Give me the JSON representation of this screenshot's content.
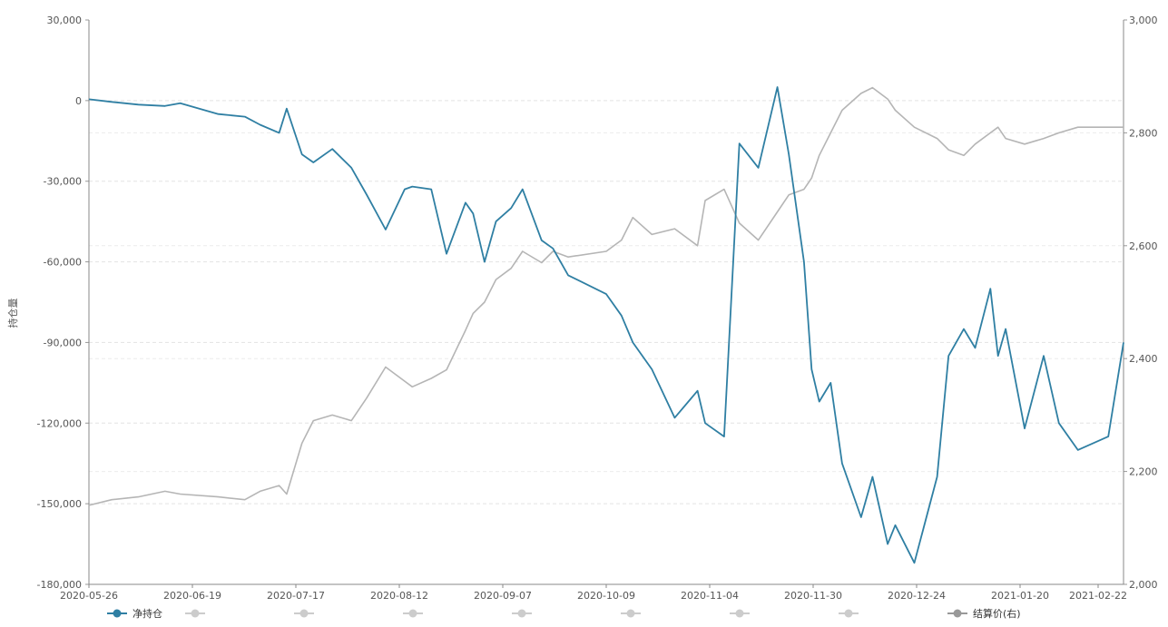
{
  "chart_data": {
    "type": "line",
    "ylabel": "持仓量",
    "y_left": {
      "min": -180000,
      "max": 30000,
      "ticks": [
        "30,000",
        "0",
        "-30,000",
        "-60,000",
        "-90,000",
        "-120,000",
        "-150,000",
        "-180,000"
      ]
    },
    "y_right": {
      "min": 2000,
      "max": 3000,
      "ticks": [
        "3,000",
        "2,800",
        "2,600",
        "2,400",
        "2,200",
        "2,000"
      ]
    },
    "x_ticks": [
      "2020-05-26",
      "2020-06-19",
      "2020-07-17",
      "2020-08-12",
      "2020-09-07",
      "2020-10-09",
      "2020-11-04",
      "2020-11-30",
      "2020-12-24",
      "2021-01-20",
      "2021-02-22"
    ],
    "grid": "horizontal dashed",
    "legend_position": "bottom",
    "colors": {
      "net": "#2f7fa3",
      "price": "#b5b5b5",
      "muted": "#cccccc"
    },
    "legend": [
      {
        "label": "净持仓",
        "active": true,
        "color": "#2f7fa3"
      },
      {
        "label": "",
        "active": false,
        "color": "#cccccc"
      },
      {
        "label": "",
        "active": false,
        "color": "#cccccc"
      },
      {
        "label": "",
        "active": false,
        "color": "#cccccc"
      },
      {
        "label": "",
        "active": false,
        "color": "#cccccc"
      },
      {
        "label": "",
        "active": false,
        "color": "#cccccc"
      },
      {
        "label": "",
        "active": false,
        "color": "#cccccc"
      },
      {
        "label": "",
        "active": false,
        "color": "#cccccc"
      },
      {
        "label": "结算价(右)",
        "active": true,
        "color": "#999999"
      }
    ],
    "series": [
      {
        "name": "净持仓",
        "axis": "left",
        "x": [
          "2020-05-26",
          "2020-06-01",
          "2020-06-08",
          "2020-06-15",
          "2020-06-19",
          "2020-06-29",
          "2020-07-06",
          "2020-07-10",
          "2020-07-15",
          "2020-07-17",
          "2020-07-21",
          "2020-07-24",
          "2020-07-29",
          "2020-08-03",
          "2020-08-07",
          "2020-08-12",
          "2020-08-17",
          "2020-08-19",
          "2020-08-24",
          "2020-08-28",
          "2020-09-02",
          "2020-09-04",
          "2020-09-07",
          "2020-09-10",
          "2020-09-14",
          "2020-09-17",
          "2020-09-22",
          "2020-09-25",
          "2020-09-29",
          "2020-10-09",
          "2020-10-13",
          "2020-10-16",
          "2020-10-21",
          "2020-10-27",
          "2020-11-02",
          "2020-11-04",
          "2020-11-09",
          "2020-11-13",
          "2020-11-18",
          "2020-11-23",
          "2020-11-26",
          "2020-11-30",
          "2020-12-02",
          "2020-12-04",
          "2020-12-07",
          "2020-12-10",
          "2020-12-15",
          "2020-12-18",
          "2020-12-22",
          "2020-12-24",
          "2020-12-29",
          "2021-01-04",
          "2021-01-07",
          "2021-01-11",
          "2021-01-14",
          "2021-01-18",
          "2021-01-20",
          "2021-01-22",
          "2021-01-27",
          "2021-02-01",
          "2021-02-05",
          "2021-02-10",
          "2021-02-18",
          "2021-02-22"
        ],
        "values": [
          500,
          -500,
          -1500,
          -2000,
          -1000,
          -5000,
          -6000,
          -9000,
          -12000,
          -3000,
          -20000,
          -23000,
          -18000,
          -25000,
          -35000,
          -48000,
          -33000,
          -32000,
          -33000,
          -57000,
          -38000,
          -42000,
          -60000,
          -45000,
          -40000,
          -33000,
          -52000,
          -55000,
          -65000,
          -72000,
          -80000,
          -90000,
          -100000,
          -118000,
          -108000,
          -120000,
          -125000,
          -16000,
          -25000,
          5000,
          -20000,
          -60000,
          -100000,
          -112000,
          -105000,
          -135000,
          -155000,
          -140000,
          -165000,
          -158000,
          -172000,
          -140000,
          -95000,
          -85000,
          -92000,
          -70000,
          -95000,
          -85000,
          -122000,
          -95000,
          -120000,
          -130000,
          -125000,
          -90000
        ]
      },
      {
        "name": "结算价(右)",
        "axis": "right",
        "x": [
          "2020-05-26",
          "2020-06-01",
          "2020-06-08",
          "2020-06-15",
          "2020-06-19",
          "2020-06-29",
          "2020-07-06",
          "2020-07-10",
          "2020-07-15",
          "2020-07-17",
          "2020-07-21",
          "2020-07-24",
          "2020-07-29",
          "2020-08-03",
          "2020-08-07",
          "2020-08-12",
          "2020-08-17",
          "2020-08-19",
          "2020-08-24",
          "2020-08-28",
          "2020-09-02",
          "2020-09-04",
          "2020-09-07",
          "2020-09-10",
          "2020-09-14",
          "2020-09-17",
          "2020-09-22",
          "2020-09-25",
          "2020-09-29",
          "2020-10-09",
          "2020-10-13",
          "2020-10-16",
          "2020-10-21",
          "2020-10-27",
          "2020-11-02",
          "2020-11-04",
          "2020-11-09",
          "2020-11-13",
          "2020-11-18",
          "2020-11-23",
          "2020-11-26",
          "2020-11-30",
          "2020-12-02",
          "2020-12-04",
          "2020-12-07",
          "2020-12-10",
          "2020-12-15",
          "2020-12-18",
          "2020-12-22",
          "2020-12-24",
          "2020-12-29",
          "2021-01-04",
          "2021-01-07",
          "2021-01-11",
          "2021-01-14",
          "2021-01-18",
          "2021-01-20",
          "2021-01-22",
          "2021-01-27",
          "2021-02-01",
          "2021-02-05",
          "2021-02-10",
          "2021-02-18",
          "2021-02-22"
        ],
        "values": [
          2140,
          2150,
          2155,
          2165,
          2160,
          2155,
          2150,
          2165,
          2175,
          2160,
          2250,
          2290,
          2300,
          2290,
          2330,
          2385,
          2360,
          2350,
          2365,
          2380,
          2450,
          2480,
          2500,
          2540,
          2560,
          2590,
          2570,
          2590,
          2580,
          2590,
          2610,
          2650,
          2620,
          2630,
          2600,
          2680,
          2700,
          2640,
          2610,
          2660,
          2690,
          2700,
          2720,
          2760,
          2800,
          2840,
          2870,
          2880,
          2860,
          2840,
          2810,
          2790,
          2770,
          2760,
          2780,
          2800,
          2810,
          2790,
          2780,
          2790,
          2800,
          2810,
          2810,
          2810
        ]
      }
    ]
  }
}
